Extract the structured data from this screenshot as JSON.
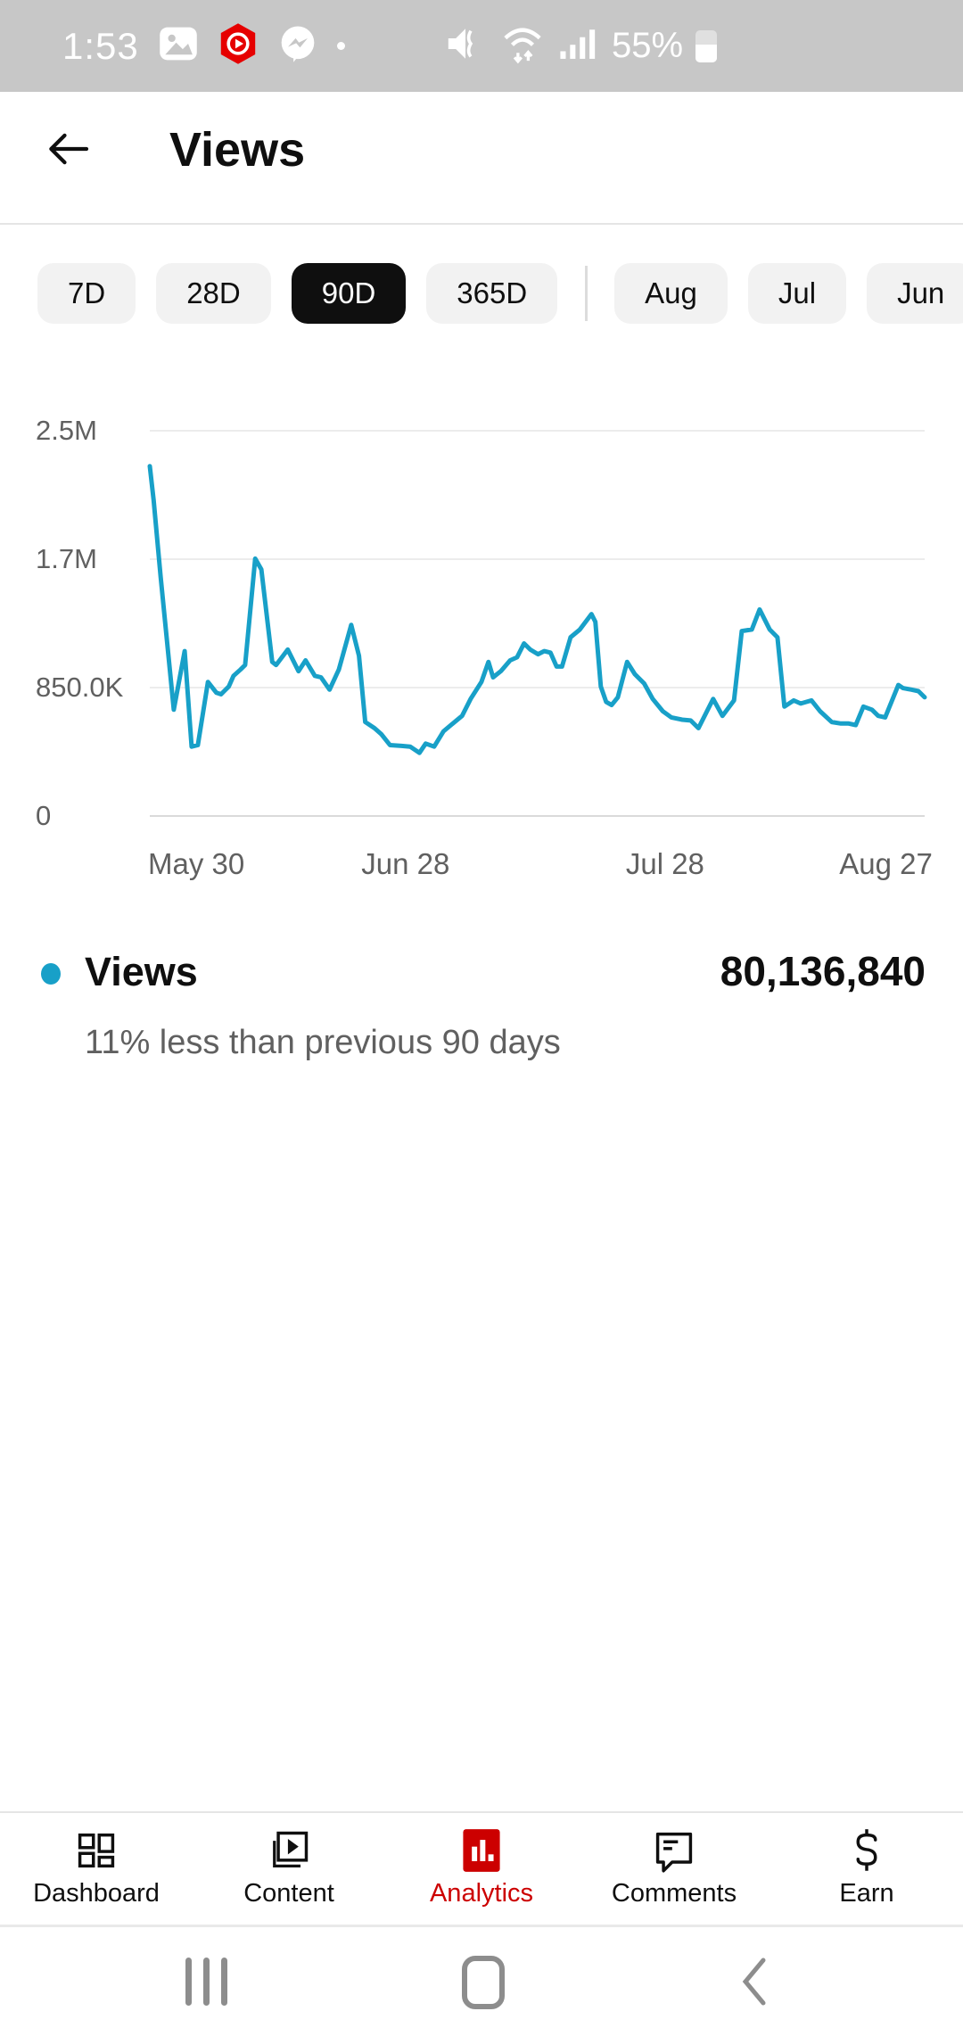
{
  "status_bar": {
    "time": "1:53",
    "battery_pct": "55%",
    "left_icons": [
      "gallery-icon",
      "yt-studio-icon",
      "messenger-icon",
      "notification-dot"
    ],
    "right_icons": [
      "mute-icon",
      "wifi-icon",
      "signal-icon",
      "battery-icon"
    ]
  },
  "header": {
    "title": "Views"
  },
  "chips": {
    "ranges": [
      {
        "label": "7D",
        "selected": false
      },
      {
        "label": "28D",
        "selected": false
      },
      {
        "label": "90D",
        "selected": true
      },
      {
        "label": "365D",
        "selected": false
      }
    ],
    "months": [
      {
        "label": "Aug"
      },
      {
        "label": "Jul"
      },
      {
        "label": "Jun"
      }
    ]
  },
  "chart_data": {
    "type": "line",
    "title": "",
    "xlabel": "",
    "ylabel": "",
    "unit": "views (value in millions)",
    "line_color": "#18a0c8",
    "grid": "horizontal",
    "ylim": [
      0,
      2500000
    ],
    "y_ticks": [
      "0",
      "850.0K",
      "1.7M",
      "2.5M"
    ],
    "x_ticks": [
      {
        "label": "May 30",
        "f": 0.06
      },
      {
        "label": "Jun 28",
        "f": 0.33
      },
      {
        "label": "Jul 28",
        "f": 0.665
      },
      {
        "label": "Aug 27",
        "f": 0.95
      }
    ],
    "series": [
      {
        "name": "Views",
        "points": [
          [
            0.0,
            2.27
          ],
          [
            0.005,
            2.05
          ],
          [
            0.014,
            1.55
          ],
          [
            0.031,
            0.69
          ],
          [
            0.045,
            1.07
          ],
          [
            0.054,
            0.45
          ],
          [
            0.062,
            0.46
          ],
          [
            0.075,
            0.87
          ],
          [
            0.086,
            0.8
          ],
          [
            0.092,
            0.79
          ],
          [
            0.102,
            0.84
          ],
          [
            0.108,
            0.91
          ],
          [
            0.117,
            0.95
          ],
          [
            0.123,
            0.98
          ],
          [
            0.136,
            1.67
          ],
          [
            0.144,
            1.6
          ],
          [
            0.158,
            1.0
          ],
          [
            0.163,
            0.98
          ],
          [
            0.178,
            1.08
          ],
          [
            0.192,
            0.94
          ],
          [
            0.201,
            1.01
          ],
          [
            0.213,
            0.91
          ],
          [
            0.221,
            0.9
          ],
          [
            0.232,
            0.82
          ],
          [
            0.244,
            0.95
          ],
          [
            0.26,
            1.24
          ],
          [
            0.27,
            1.04
          ],
          [
            0.278,
            0.61
          ],
          [
            0.29,
            0.57
          ],
          [
            0.299,
            0.53
          ],
          [
            0.31,
            0.46
          ],
          [
            0.325,
            0.455
          ],
          [
            0.336,
            0.45
          ],
          [
            0.348,
            0.41
          ],
          [
            0.356,
            0.47
          ],
          [
            0.367,
            0.45
          ],
          [
            0.379,
            0.55
          ],
          [
            0.391,
            0.6
          ],
          [
            0.403,
            0.65
          ],
          [
            0.414,
            0.76
          ],
          [
            0.428,
            0.87
          ],
          [
            0.437,
            1.0
          ],
          [
            0.443,
            0.9
          ],
          [
            0.453,
            0.94
          ],
          [
            0.465,
            1.01
          ],
          [
            0.474,
            1.03
          ],
          [
            0.483,
            1.12
          ],
          [
            0.491,
            1.08
          ],
          [
            0.501,
            1.05
          ],
          [
            0.509,
            1.07
          ],
          [
            0.517,
            1.06
          ],
          [
            0.525,
            0.97
          ],
          [
            0.532,
            0.97
          ],
          [
            0.543,
            1.16
          ],
          [
            0.555,
            1.21
          ],
          [
            0.57,
            1.31
          ],
          [
            0.575,
            1.26
          ],
          [
            0.582,
            0.84
          ],
          [
            0.589,
            0.74
          ],
          [
            0.596,
            0.72
          ],
          [
            0.604,
            0.77
          ],
          [
            0.616,
            1.0
          ],
          [
            0.626,
            0.92
          ],
          [
            0.638,
            0.86
          ],
          [
            0.649,
            0.76
          ],
          [
            0.662,
            0.68
          ],
          [
            0.673,
            0.64
          ],
          [
            0.687,
            0.625
          ],
          [
            0.698,
            0.62
          ],
          [
            0.708,
            0.57
          ],
          [
            0.727,
            0.76
          ],
          [
            0.739,
            0.65
          ],
          [
            0.754,
            0.75
          ],
          [
            0.764,
            1.2
          ],
          [
            0.777,
            1.21
          ],
          [
            0.787,
            1.34
          ],
          [
            0.8,
            1.21
          ],
          [
            0.81,
            1.16
          ],
          [
            0.819,
            0.71
          ],
          [
            0.831,
            0.75
          ],
          [
            0.84,
            0.73
          ],
          [
            0.854,
            0.75
          ],
          [
            0.865,
            0.68
          ],
          [
            0.88,
            0.61
          ],
          [
            0.892,
            0.6
          ],
          [
            0.902,
            0.6
          ],
          [
            0.911,
            0.59
          ],
          [
            0.921,
            0.71
          ],
          [
            0.932,
            0.69
          ],
          [
            0.94,
            0.65
          ],
          [
            0.949,
            0.64
          ],
          [
            0.966,
            0.85
          ],
          [
            0.972,
            0.83
          ],
          [
            0.983,
            0.82
          ],
          [
            0.992,
            0.81
          ],
          [
            1.0,
            0.77
          ]
        ]
      }
    ]
  },
  "legend": {
    "label": "Views",
    "value": "80,136,840",
    "comparison": "11% less than previous 90 days",
    "dot_color": "#18a0c8"
  },
  "nav": {
    "items": [
      {
        "label": "Dashboard",
        "active": false
      },
      {
        "label": "Content",
        "active": false
      },
      {
        "label": "Analytics",
        "active": true
      },
      {
        "label": "Comments",
        "active": false
      },
      {
        "label": "Earn",
        "active": false
      }
    ],
    "active_color": "#cc0000"
  }
}
